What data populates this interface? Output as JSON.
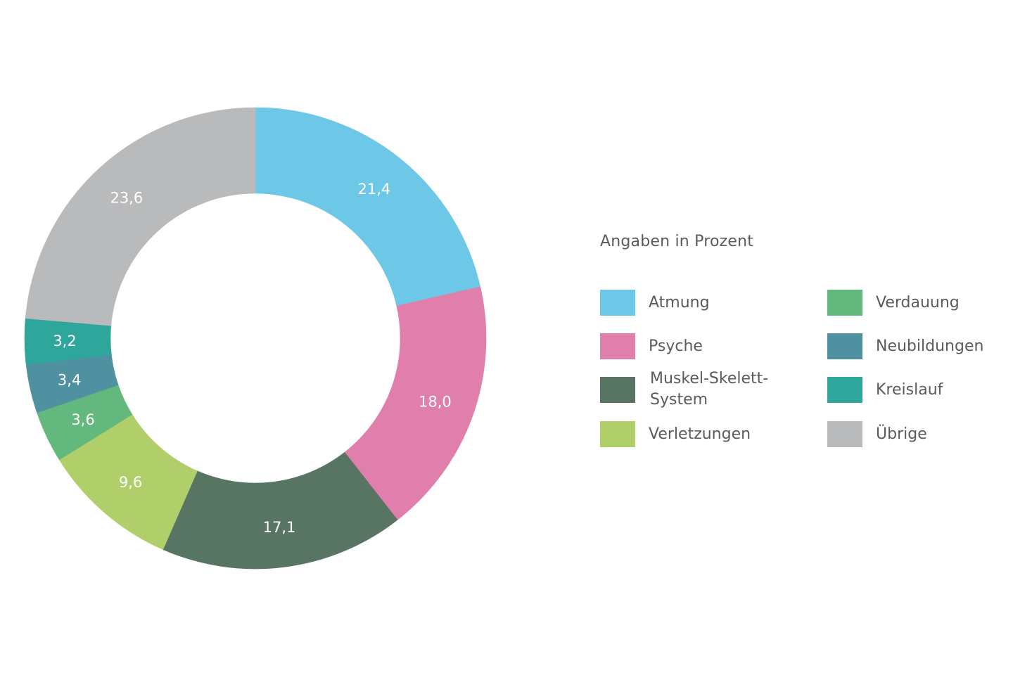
{
  "chart_data": {
    "type": "pie",
    "variant": "donut",
    "title": "",
    "legend_title": "Angaben in Prozent",
    "unit": "percent",
    "start_angle": "12 o'clock, clockwise",
    "categories": [
      "Atmung",
      "Psyche",
      "Muskel-Skelett-System",
      "Verletzungen",
      "Verdauung",
      "Neubildungen",
      "Kreislauf",
      "Übrige"
    ],
    "values": [
      21.4,
      18.0,
      17.1,
      9.6,
      3.6,
      3.4,
      3.2,
      23.6
    ],
    "value_labels": [
      "21,4",
      "18,0",
      "17,1",
      "9,6",
      "3,6",
      "3,4",
      "3,2",
      "23,6"
    ],
    "colors": [
      "#6dc8e7",
      "#e07fab",
      "#587463",
      "#b0cf6a",
      "#62b87d",
      "#4f91a1",
      "#2fa69c",
      "#b9babc"
    ],
    "legend_position": "right"
  },
  "legend": {
    "title": "Angaben in Prozent",
    "items": [
      {
        "label": "Atmung",
        "color": "#6dc8e7"
      },
      {
        "label": "Psyche",
        "color": "#e07fab"
      },
      {
        "label": "Muskel-Skelett-\nSystem",
        "color": "#587463"
      },
      {
        "label": "Verletzungen",
        "color": "#b0cf6a"
      },
      {
        "label": "Verdauung",
        "color": "#62b87d"
      },
      {
        "label": "Neubildungen",
        "color": "#4f91a1"
      },
      {
        "label": "Kreislauf",
        "color": "#2fa69c"
      },
      {
        "label": "Übrige",
        "color": "#b9babc"
      }
    ]
  }
}
